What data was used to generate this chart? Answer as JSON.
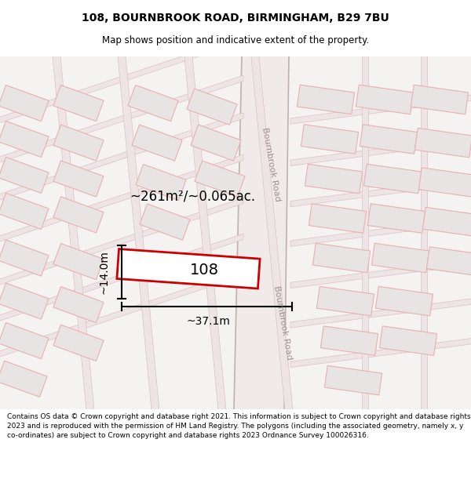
{
  "title": "108, BOURNBROOK ROAD, BIRMINGHAM, B29 7BU",
  "subtitle": "Map shows position and indicative extent of the property.",
  "footer": "Contains OS data © Crown copyright and database right 2021. This information is subject to Crown copyright and database rights 2023 and is reproduced with the permission of HM Land Registry. The polygons (including the associated geometry, namely x, y co-ordinates) are subject to Crown copyright and database rights 2023 Ordnance Survey 100026316.",
  "area_text": "~261m²/~0.065ac.",
  "label_108": "108",
  "dim_width": "~37.1m",
  "dim_height": "~14.0m",
  "road_label_1": "Bournbrook Road",
  "road_label_2": "Bournbrook Road",
  "map_bg": "#f7f4f4",
  "road_fill": "#ffffff",
  "road_border_color": "#c8bebe",
  "bldg_fill": "#e8e4e4",
  "bldg_edge": "#e8b0b0",
  "highlight_fill": "#ffffff",
  "highlight_edge": "#cc0000",
  "title_fontsize": 10,
  "subtitle_fontsize": 8.5,
  "footer_fontsize": 6.5
}
